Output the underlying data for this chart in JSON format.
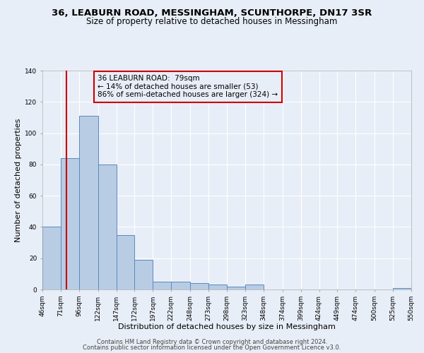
{
  "title": "36, LEABURN ROAD, MESSINGHAM, SCUNTHORPE, DN17 3SR",
  "subtitle": "Size of property relative to detached houses in Messingham",
  "xlabel": "Distribution of detached houses by size in Messingham",
  "ylabel": "Number of detached properties",
  "bar_edges": [
    46,
    71,
    96,
    122,
    147,
    172,
    197,
    222,
    248,
    273,
    298,
    323,
    348,
    374,
    399,
    424,
    449,
    474,
    500,
    525,
    550
  ],
  "bar_heights": [
    40,
    84,
    111,
    80,
    35,
    19,
    5,
    5,
    4,
    3,
    2,
    3,
    0,
    0,
    0,
    0,
    0,
    0,
    0,
    1
  ],
  "bar_color": "#b8cce4",
  "bar_edge_color": "#5a8abf",
  "bg_color": "#e8eef7",
  "grid_color": "#ffffff",
  "vline_x": 79,
  "vline_color": "#cc0000",
  "annotation_box_color": "#cc0000",
  "annotation_line1": "36 LEABURN ROAD:  79sqm",
  "annotation_line2": "← 14% of detached houses are smaller (53)",
  "annotation_line3": "86% of semi-detached houses are larger (324) →",
  "ylim": [
    0,
    140
  ],
  "tick_labels": [
    "46sqm",
    "71sqm",
    "96sqm",
    "122sqm",
    "147sqm",
    "172sqm",
    "197sqm",
    "222sqm",
    "248sqm",
    "273sqm",
    "298sqm",
    "323sqm",
    "348sqm",
    "374sqm",
    "399sqm",
    "424sqm",
    "449sqm",
    "474sqm",
    "500sqm",
    "525sqm",
    "550sqm"
  ],
  "footer1": "Contains HM Land Registry data © Crown copyright and database right 2024.",
  "footer2": "Contains public sector information licensed under the Open Government Licence v3.0.",
  "title_fontsize": 9.5,
  "subtitle_fontsize": 8.5,
  "xlabel_fontsize": 8,
  "ylabel_fontsize": 8,
  "tick_fontsize": 6.5,
  "annotation_fontsize": 7.5,
  "footer_fontsize": 6
}
